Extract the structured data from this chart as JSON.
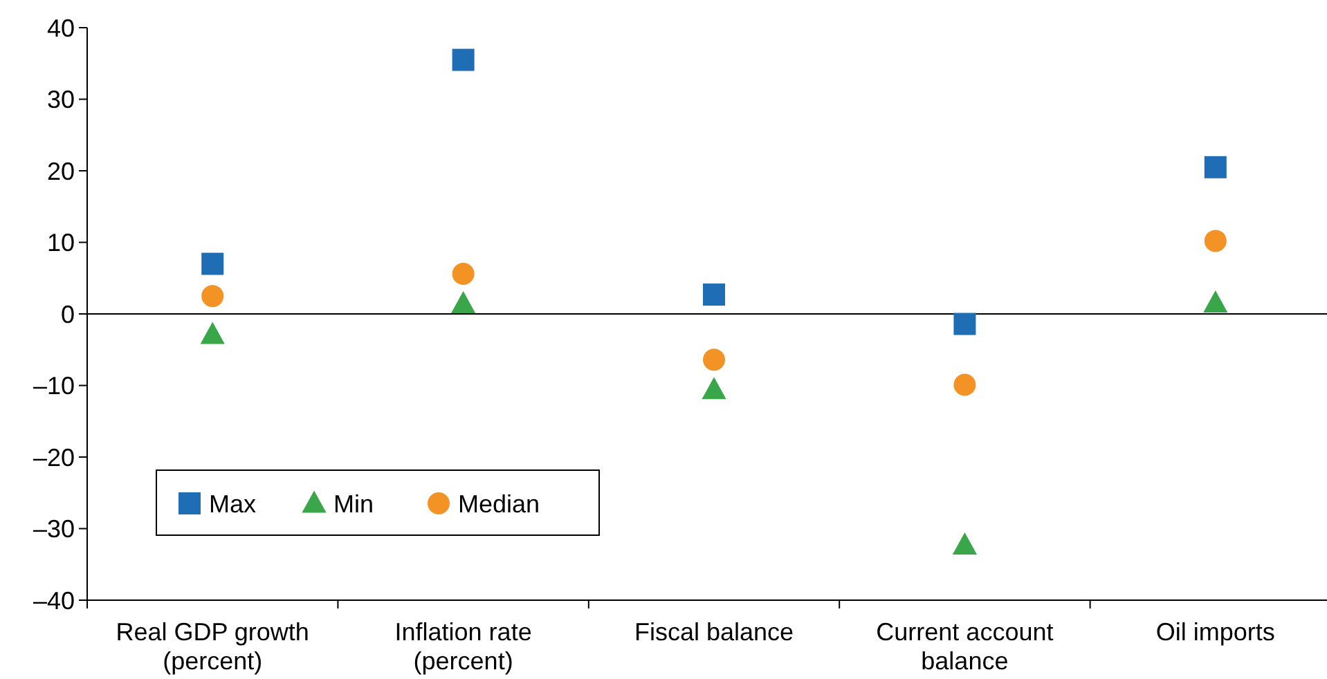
{
  "chart_data": {
    "type": "scatter",
    "categories": [
      "Real GDP growth\n(percent)",
      "Inflation rate\n(percent)",
      "Fiscal balance",
      "Current account\nbalance",
      "Oil imports"
    ],
    "series": [
      {
        "name": "Max",
        "color": "#1f6db5",
        "marker": "square",
        "values": [
          7,
          35.5,
          2.7,
          -1.4,
          20.5
        ]
      },
      {
        "name": "Min",
        "color": "#3aa64a",
        "marker": "triangle",
        "values": [
          -2.9,
          1.4,
          -10.6,
          -32.3,
          1.5
        ]
      },
      {
        "name": "Median",
        "color": "#f39325",
        "marker": "circle",
        "values": [
          2.5,
          5.6,
          -6.4,
          -9.9,
          10.2
        ]
      }
    ],
    "ylim": [
      -40,
      40
    ],
    "yticks": [
      {
        "value": -40,
        "label": "–40"
      },
      {
        "value": -30,
        "label": "–30"
      },
      {
        "value": -20,
        "label": "–20"
      },
      {
        "value": -10,
        "label": "–10"
      },
      0,
      10,
      20,
      30,
      40
    ],
    "ref_lines": [
      {
        "axis": "y",
        "value": 0
      }
    ],
    "grid": false,
    "legend": "bottom left"
  }
}
